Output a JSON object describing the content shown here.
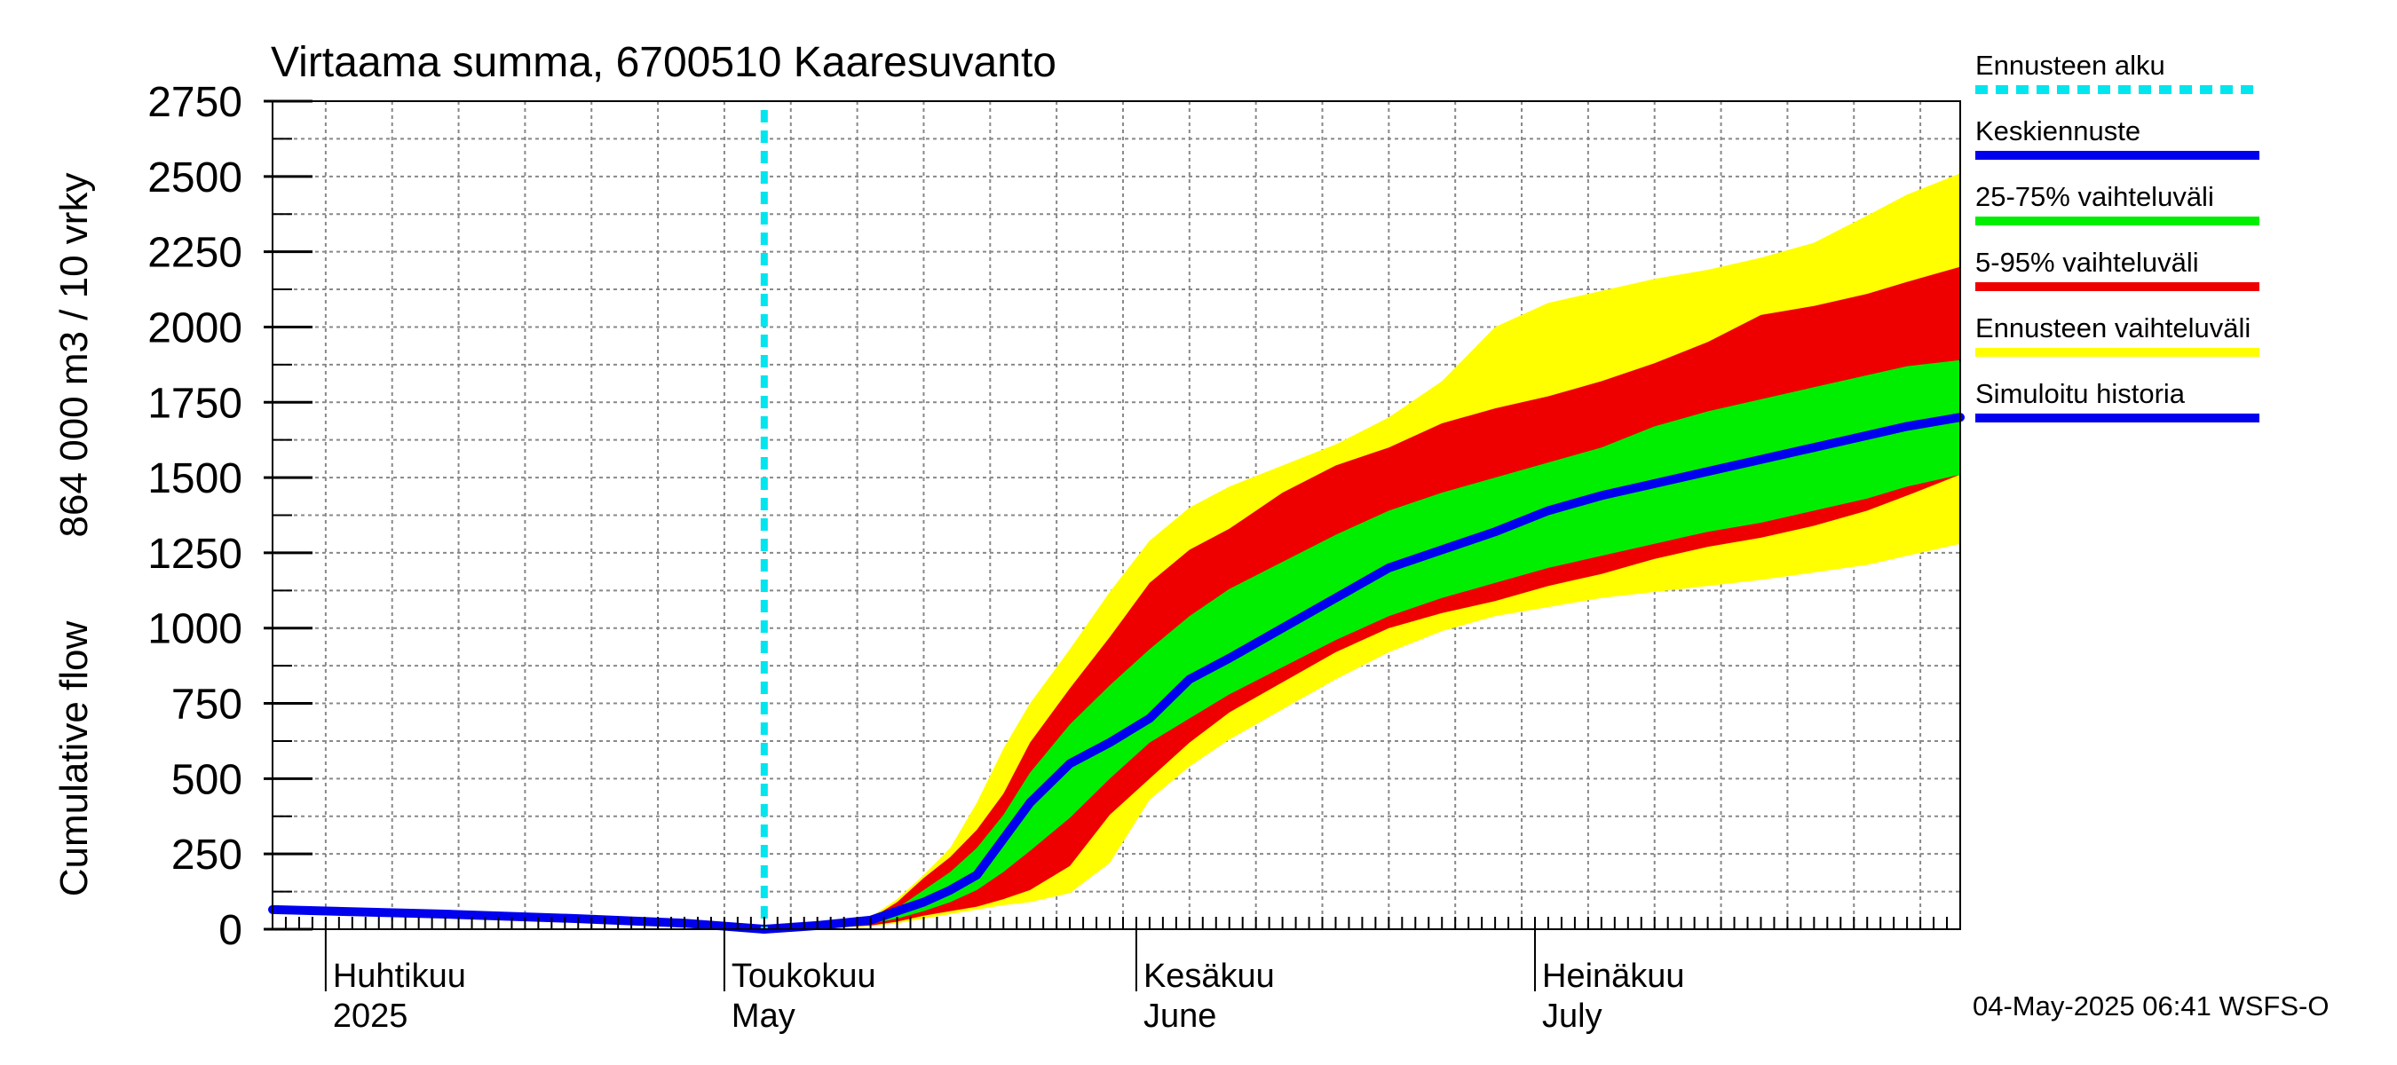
{
  "chart_data": {
    "type": "area",
    "title": "Virtaama summa, 6700510 Kaaresuvanto",
    "ylabel_line1": "Cumulative flow",
    "ylabel_line2": "864 000 m3 / 10 vrky",
    "ylim": [
      0,
      2750
    ],
    "yticks": [
      0,
      250,
      500,
      750,
      1000,
      1250,
      1500,
      1750,
      2000,
      2250,
      2500,
      2750
    ],
    "xlim": [
      "2025-03-28",
      "2025-08-02"
    ],
    "forecast_start": "2025-05-04",
    "months": [
      {
        "fi": "Huhtikuu",
        "en": "2025",
        "date": "2025-04-01"
      },
      {
        "fi": "Toukokuu",
        "en": "May",
        "date": "2025-05-01"
      },
      {
        "fi": "Kesäkuu",
        "en": "June",
        "date": "2025-06-01"
      },
      {
        "fi": "Heinäkuu",
        "en": "July",
        "date": "2025-07-01"
      }
    ],
    "grid": true,
    "legend_position": "right",
    "legend": [
      {
        "label": "Ennusteen alku",
        "color": "#00e5ee",
        "style": "dashed"
      },
      {
        "label": "Keskiennuste",
        "color": "#0000ee",
        "style": "solid"
      },
      {
        "label": "25-75% vaihteluväli",
        "color": "#00ee00",
        "style": "solid"
      },
      {
        "label": "5-95% vaihteluväli",
        "color": "#ee0000",
        "style": "solid"
      },
      {
        "label": "Ennusteen vaihteluväli",
        "color": "#ffff00",
        "style": "solid"
      },
      {
        "label": "Simuloitu historia",
        "color": "#0000ee",
        "style": "solid"
      }
    ],
    "series": [
      {
        "name": "Ennusteen vaihteluväli",
        "color": "#ffff00",
        "kind": "band",
        "x": [
          "2025-05-04",
          "2025-05-08",
          "2025-05-12",
          "2025-05-14",
          "2025-05-16",
          "2025-05-18",
          "2025-05-20",
          "2025-05-22",
          "2025-05-24",
          "2025-05-27",
          "2025-05-30",
          "2025-06-02",
          "2025-06-05",
          "2025-06-08",
          "2025-06-12",
          "2025-06-16",
          "2025-06-20",
          "2025-06-24",
          "2025-06-28",
          "2025-07-02",
          "2025-07-06",
          "2025-07-10",
          "2025-07-14",
          "2025-07-18",
          "2025-07-22",
          "2025-07-26",
          "2025-07-29",
          "2025-08-02"
        ],
        "upper": [
          5,
          15,
          40,
          100,
          180,
          270,
          420,
          600,
          750,
          930,
          1120,
          1290,
          1400,
          1470,
          1540,
          1610,
          1700,
          1820,
          2000,
          2080,
          2120,
          2160,
          2190,
          2230,
          2280,
          2370,
          2440,
          2510
        ],
        "lower": [
          0,
          3,
          10,
          20,
          35,
          50,
          65,
          80,
          90,
          120,
          220,
          430,
          540,
          630,
          730,
          830,
          920,
          990,
          1040,
          1070,
          1100,
          1120,
          1140,
          1160,
          1185,
          1210,
          1240,
          1280
        ]
      },
      {
        "name": "5-95% vaihteluväli",
        "color": "#ee0000",
        "kind": "band",
        "x": [
          "2025-05-04",
          "2025-05-08",
          "2025-05-12",
          "2025-05-14",
          "2025-05-16",
          "2025-05-18",
          "2025-05-20",
          "2025-05-22",
          "2025-05-24",
          "2025-05-27",
          "2025-05-30",
          "2025-06-02",
          "2025-06-05",
          "2025-06-08",
          "2025-06-12",
          "2025-06-16",
          "2025-06-20",
          "2025-06-24",
          "2025-06-28",
          "2025-07-02",
          "2025-07-06",
          "2025-07-10",
          "2025-07-14",
          "2025-07-18",
          "2025-07-22",
          "2025-07-26",
          "2025-07-29",
          "2025-08-02"
        ],
        "upper": [
          4,
          12,
          35,
          90,
          170,
          240,
          330,
          450,
          620,
          800,
          970,
          1150,
          1260,
          1330,
          1450,
          1540,
          1600,
          1680,
          1730,
          1770,
          1820,
          1880,
          1950,
          2040,
          2070,
          2110,
          2150,
          2200
        ],
        "lower": [
          0,
          4,
          12,
          25,
          45,
          60,
          75,
          100,
          130,
          210,
          380,
          500,
          620,
          720,
          820,
          920,
          1000,
          1050,
          1090,
          1140,
          1180,
          1230,
          1270,
          1300,
          1340,
          1390,
          1440,
          1510
        ]
      },
      {
        "name": "25-75% vaihteluväli",
        "color": "#00ee00",
        "kind": "band",
        "x": [
          "2025-05-04",
          "2025-05-08",
          "2025-05-12",
          "2025-05-14",
          "2025-05-16",
          "2025-05-18",
          "2025-05-20",
          "2025-05-22",
          "2025-05-24",
          "2025-05-27",
          "2025-05-30",
          "2025-06-02",
          "2025-06-05",
          "2025-06-08",
          "2025-06-12",
          "2025-06-16",
          "2025-06-20",
          "2025-06-24",
          "2025-06-28",
          "2025-07-02",
          "2025-07-06",
          "2025-07-10",
          "2025-07-14",
          "2025-07-18",
          "2025-07-22",
          "2025-07-26",
          "2025-07-29",
          "2025-08-02"
        ],
        "upper": [
          3,
          10,
          30,
          70,
          130,
          190,
          270,
          380,
          520,
          680,
          810,
          930,
          1040,
          1130,
          1220,
          1310,
          1390,
          1450,
          1500,
          1550,
          1600,
          1670,
          1720,
          1760,
          1800,
          1840,
          1870,
          1890
        ],
        "lower": [
          0,
          6,
          18,
          35,
          60,
          90,
          130,
          190,
          260,
          370,
          500,
          620,
          700,
          780,
          870,
          960,
          1040,
          1100,
          1150,
          1200,
          1240,
          1280,
          1320,
          1350,
          1390,
          1430,
          1470,
          1510
        ]
      },
      {
        "name": "Keskiennuste",
        "color": "#0000ee",
        "kind": "line",
        "x": [
          "2025-05-04",
          "2025-05-08",
          "2025-05-12",
          "2025-05-14",
          "2025-05-16",
          "2025-05-18",
          "2025-05-20",
          "2025-05-22",
          "2025-05-24",
          "2025-05-27",
          "2025-05-30",
          "2025-06-02",
          "2025-06-05",
          "2025-06-08",
          "2025-06-12",
          "2025-06-16",
          "2025-06-20",
          "2025-06-24",
          "2025-06-28",
          "2025-07-02",
          "2025-07-06",
          "2025-07-10",
          "2025-07-14",
          "2025-07-18",
          "2025-07-22",
          "2025-07-26",
          "2025-07-29",
          "2025-08-02"
        ],
        "y": [
          0,
          12,
          30,
          60,
          90,
          130,
          180,
          300,
          420,
          550,
          620,
          700,
          830,
          900,
          1000,
          1100,
          1200,
          1260,
          1320,
          1390,
          1440,
          1480,
          1520,
          1560,
          1600,
          1640,
          1670,
          1700
        ]
      },
      {
        "name": "Simuloitu historia",
        "color": "#0000ee",
        "kind": "line",
        "x": [
          "2025-03-28",
          "2025-04-10",
          "2025-04-20",
          "2025-04-28",
          "2025-05-04"
        ],
        "y": [
          65,
          50,
          35,
          20,
          0
        ]
      }
    ]
  },
  "footer": "04-May-2025 06:41 WSFS-O"
}
